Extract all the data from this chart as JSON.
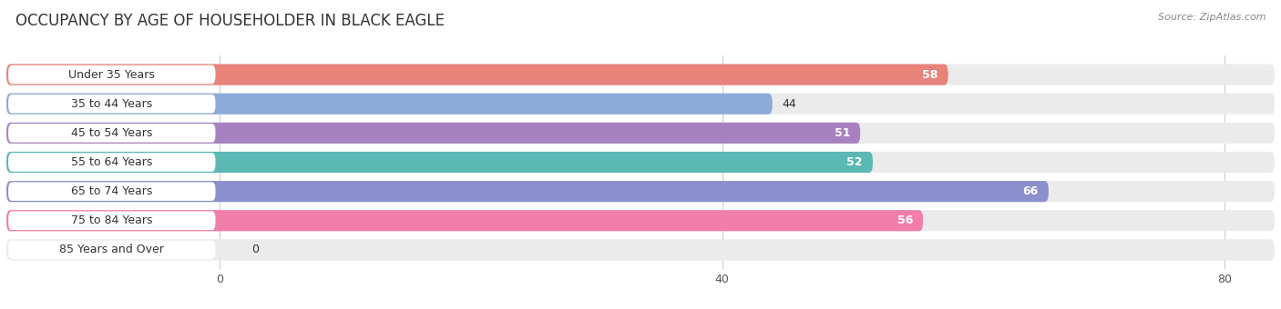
{
  "title": "OCCUPANCY BY AGE OF HOUSEHOLDER IN BLACK EAGLE",
  "source": "Source: ZipAtlas.com",
  "categories": [
    "Under 35 Years",
    "35 to 44 Years",
    "45 to 54 Years",
    "55 to 64 Years",
    "65 to 74 Years",
    "75 to 84 Years",
    "85 Years and Over"
  ],
  "values": [
    58,
    44,
    51,
    52,
    66,
    56,
    0
  ],
  "bar_colors": [
    "#E8837A",
    "#8BAAD8",
    "#A882C0",
    "#5BB8B4",
    "#8B8FCC",
    "#F07EA8",
    "#F5C99A"
  ],
  "value_inside": [
    true,
    false,
    true,
    true,
    true,
    true,
    false
  ],
  "xlim_data": [
    0,
    80
  ],
  "xticks": [
    0,
    40,
    80
  ],
  "background_color": "#ffffff",
  "bar_bg_color": "#ebebeb",
  "label_box_color": "#ffffff",
  "title_fontsize": 12,
  "label_fontsize": 9,
  "value_fontsize": 9
}
